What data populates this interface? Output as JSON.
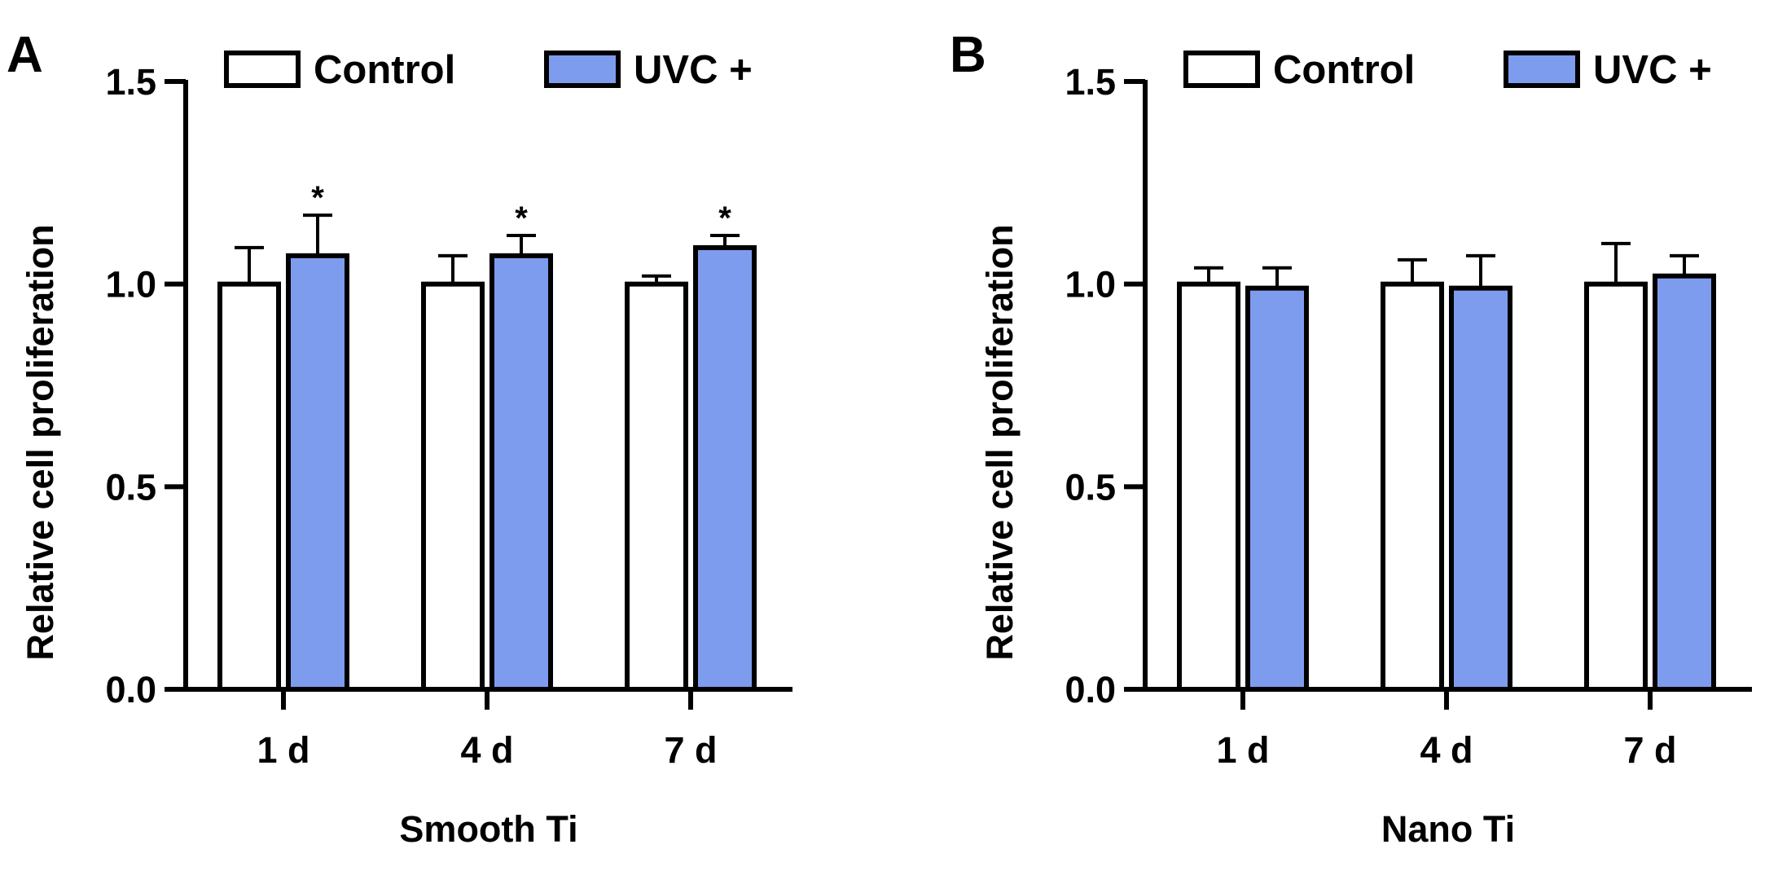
{
  "colors": {
    "control": "#ffffff",
    "uvc": "#7e9cee",
    "stroke": "#000000"
  },
  "chart_data": [
    {
      "panel": "A",
      "type": "bar",
      "title": "",
      "xlabel": "Smooth Ti",
      "ylabel": "Relative cell proliferation",
      "ylim": [
        0,
        1.5
      ],
      "yticks": [
        "0.0",
        "0.5",
        "1.0",
        "1.5"
      ],
      "categories": [
        "1 d",
        "4 d",
        "7 d"
      ],
      "legend": [
        "Control",
        "UVC +"
      ],
      "legend_position": "top",
      "series": [
        {
          "name": "Control",
          "values": [
            1.0,
            1.0,
            1.0
          ],
          "errors": [
            0.09,
            0.07,
            0.02
          ],
          "annotations": [
            "",
            "",
            ""
          ]
        },
        {
          "name": "UVC +",
          "values": [
            1.07,
            1.07,
            1.09
          ],
          "errors": [
            0.1,
            0.05,
            0.03
          ],
          "annotations": [
            "*",
            "*",
            "*"
          ]
        }
      ]
    },
    {
      "panel": "B",
      "type": "bar",
      "title": "",
      "xlabel": "Nano Ti",
      "ylabel": "Relative cell proliferation",
      "ylim": [
        0,
        1.5
      ],
      "yticks": [
        "0.0",
        "0.5",
        "1.0",
        "1.5"
      ],
      "categories": [
        "1 d",
        "4 d",
        "7 d"
      ],
      "legend": [
        "Control",
        "UVC +"
      ],
      "legend_position": "top",
      "series": [
        {
          "name": "Control",
          "values": [
            1.0,
            1.0,
            1.0
          ],
          "errors": [
            0.04,
            0.06,
            0.1
          ],
          "annotations": [
            "",
            "",
            ""
          ]
        },
        {
          "name": "UVC +",
          "values": [
            0.99,
            0.99,
            1.02
          ],
          "errors": [
            0.05,
            0.08,
            0.05
          ],
          "annotations": [
            "",
            "",
            ""
          ]
        }
      ]
    }
  ]
}
